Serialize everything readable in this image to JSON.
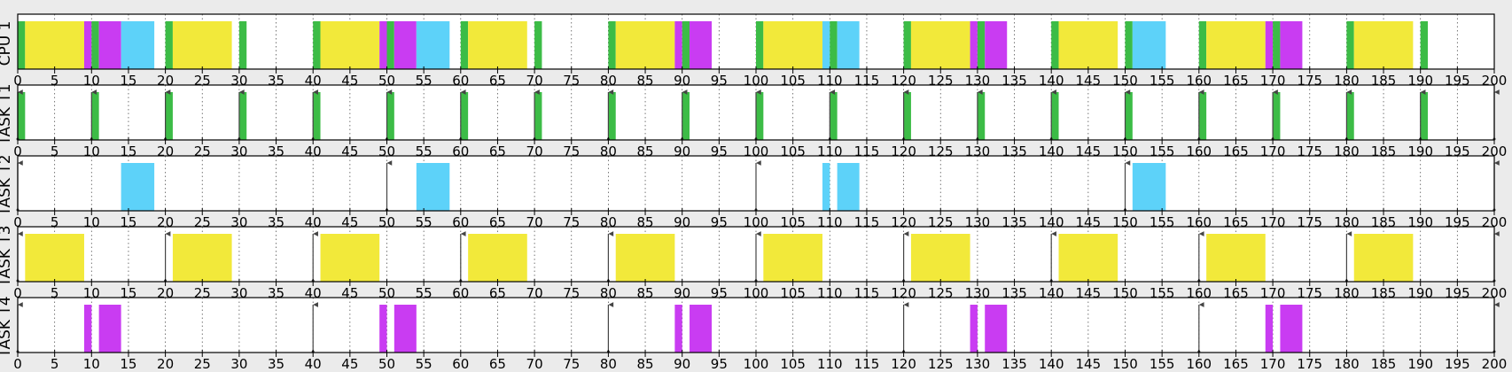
{
  "chart_data": {
    "type": "gantt",
    "x_range": [
      0,
      200
    ],
    "x_tick_step": 5,
    "grid": true,
    "colors": {
      "T1": "#3cbc46",
      "T2": "#5dd2f9",
      "T3": "#f2e93a",
      "T4": "#c93cf2",
      "background": "#ebebeb",
      "plot_background": "#ffffff"
    },
    "rows": [
      {
        "label": "CPU 1",
        "segments": [
          {
            "start": 0,
            "end": 1,
            "task": "T1"
          },
          {
            "start": 1,
            "end": 9,
            "task": "T3"
          },
          {
            "start": 9,
            "end": 10,
            "task": "T4"
          },
          {
            "start": 10,
            "end": 11,
            "task": "T1"
          },
          {
            "start": 11,
            "end": 14,
            "task": "T4"
          },
          {
            "start": 14,
            "end": 18.5,
            "task": "T2"
          },
          {
            "start": 20,
            "end": 21,
            "task": "T1"
          },
          {
            "start": 21,
            "end": 29,
            "task": "T3"
          },
          {
            "start": 30,
            "end": 31,
            "task": "T1"
          },
          {
            "start": 40,
            "end": 41,
            "task": "T1"
          },
          {
            "start": 41,
            "end": 49,
            "task": "T3"
          },
          {
            "start": 49,
            "end": 50,
            "task": "T4"
          },
          {
            "start": 50,
            "end": 51,
            "task": "T1"
          },
          {
            "start": 51,
            "end": 54,
            "task": "T4"
          },
          {
            "start": 54,
            "end": 58.5,
            "task": "T2"
          },
          {
            "start": 60,
            "end": 61,
            "task": "T1"
          },
          {
            "start": 61,
            "end": 69,
            "task": "T3"
          },
          {
            "start": 70,
            "end": 71,
            "task": "T1"
          },
          {
            "start": 80,
            "end": 81,
            "task": "T1"
          },
          {
            "start": 81,
            "end": 89,
            "task": "T3"
          },
          {
            "start": 89,
            "end": 90,
            "task": "T4"
          },
          {
            "start": 90,
            "end": 91,
            "task": "T1"
          },
          {
            "start": 91,
            "end": 94,
            "task": "T4"
          },
          {
            "start": 100,
            "end": 101,
            "task": "T1"
          },
          {
            "start": 101,
            "end": 109,
            "task": "T3"
          },
          {
            "start": 109,
            "end": 110,
            "task": "T2"
          },
          {
            "start": 110,
            "end": 111,
            "task": "T1"
          },
          {
            "start": 111,
            "end": 114,
            "task": "T2"
          },
          {
            "start": 120,
            "end": 121,
            "task": "T1"
          },
          {
            "start": 121,
            "end": 129,
            "task": "T3"
          },
          {
            "start": 129,
            "end": 130,
            "task": "T4"
          },
          {
            "start": 130,
            "end": 131,
            "task": "T1"
          },
          {
            "start": 131,
            "end": 134,
            "task": "T4"
          },
          {
            "start": 140,
            "end": 141,
            "task": "T1"
          },
          {
            "start": 141,
            "end": 149,
            "task": "T3"
          },
          {
            "start": 150,
            "end": 151,
            "task": "T1"
          },
          {
            "start": 151,
            "end": 155.5,
            "task": "T2"
          },
          {
            "start": 160,
            "end": 161,
            "task": "T1"
          },
          {
            "start": 161,
            "end": 169,
            "task": "T3"
          },
          {
            "start": 169,
            "end": 170,
            "task": "T4"
          },
          {
            "start": 170,
            "end": 171,
            "task": "T1"
          },
          {
            "start": 171,
            "end": 174,
            "task": "T4"
          },
          {
            "start": 180,
            "end": 181,
            "task": "T1"
          },
          {
            "start": 181,
            "end": 189,
            "task": "T3"
          },
          {
            "start": 190,
            "end": 191,
            "task": "T1"
          }
        ],
        "arrivals": []
      },
      {
        "label": "TASK T1",
        "segments": [
          {
            "start": 0,
            "end": 1,
            "task": "T1"
          },
          {
            "start": 10,
            "end": 11,
            "task": "T1"
          },
          {
            "start": 20,
            "end": 21,
            "task": "T1"
          },
          {
            "start": 30,
            "end": 31,
            "task": "T1"
          },
          {
            "start": 40,
            "end": 41,
            "task": "T1"
          },
          {
            "start": 50,
            "end": 51,
            "task": "T1"
          },
          {
            "start": 60,
            "end": 61,
            "task": "T1"
          },
          {
            "start": 70,
            "end": 71,
            "task": "T1"
          },
          {
            "start": 80,
            "end": 81,
            "task": "T1"
          },
          {
            "start": 90,
            "end": 91,
            "task": "T1"
          },
          {
            "start": 100,
            "end": 101,
            "task": "T1"
          },
          {
            "start": 110,
            "end": 111,
            "task": "T1"
          },
          {
            "start": 120,
            "end": 121,
            "task": "T1"
          },
          {
            "start": 130,
            "end": 131,
            "task": "T1"
          },
          {
            "start": 140,
            "end": 141,
            "task": "T1"
          },
          {
            "start": 150,
            "end": 151,
            "task": "T1"
          },
          {
            "start": 160,
            "end": 161,
            "task": "T1"
          },
          {
            "start": 170,
            "end": 171,
            "task": "T1"
          },
          {
            "start": 180,
            "end": 181,
            "task": "T1"
          },
          {
            "start": 190,
            "end": 191,
            "task": "T1"
          }
        ],
        "arrivals": [
          0,
          10,
          20,
          30,
          40,
          50,
          60,
          70,
          80,
          90,
          100,
          110,
          120,
          130,
          140,
          150,
          160,
          170,
          180,
          190,
          200
        ]
      },
      {
        "label": "TASK T2",
        "segments": [
          {
            "start": 14,
            "end": 18.5,
            "task": "T2"
          },
          {
            "start": 54,
            "end": 58.5,
            "task": "T2"
          },
          {
            "start": 109,
            "end": 110,
            "task": "T2"
          },
          {
            "start": 111,
            "end": 114,
            "task": "T2"
          },
          {
            "start": 151,
            "end": 155.5,
            "task": "T2"
          }
        ],
        "arrivals": [
          0,
          50,
          100,
          150,
          200
        ]
      },
      {
        "label": "TASK T3",
        "segments": [
          {
            "start": 1,
            "end": 9,
            "task": "T3"
          },
          {
            "start": 21,
            "end": 29,
            "task": "T3"
          },
          {
            "start": 41,
            "end": 49,
            "task": "T3"
          },
          {
            "start": 61,
            "end": 69,
            "task": "T3"
          },
          {
            "start": 81,
            "end": 89,
            "task": "T3"
          },
          {
            "start": 101,
            "end": 109,
            "task": "T3"
          },
          {
            "start": 121,
            "end": 129,
            "task": "T3"
          },
          {
            "start": 141,
            "end": 149,
            "task": "T3"
          },
          {
            "start": 161,
            "end": 169,
            "task": "T3"
          },
          {
            "start": 181,
            "end": 189,
            "task": "T3"
          }
        ],
        "arrivals": [
          0,
          20,
          40,
          60,
          80,
          100,
          120,
          140,
          160,
          180,
          200
        ]
      },
      {
        "label": "TASK T4",
        "segments": [
          {
            "start": 9,
            "end": 10,
            "task": "T4"
          },
          {
            "start": 11,
            "end": 14,
            "task": "T4"
          },
          {
            "start": 49,
            "end": 50,
            "task": "T4"
          },
          {
            "start": 51,
            "end": 54,
            "task": "T4"
          },
          {
            "start": 89,
            "end": 90,
            "task": "T4"
          },
          {
            "start": 91,
            "end": 94,
            "task": "T4"
          },
          {
            "start": 129,
            "end": 130,
            "task": "T4"
          },
          {
            "start": 131,
            "end": 134,
            "task": "T4"
          },
          {
            "start": 169,
            "end": 170,
            "task": "T4"
          },
          {
            "start": 171,
            "end": 174,
            "task": "T4"
          }
        ],
        "arrivals": [
          0,
          40,
          80,
          120,
          160,
          200
        ]
      }
    ]
  }
}
